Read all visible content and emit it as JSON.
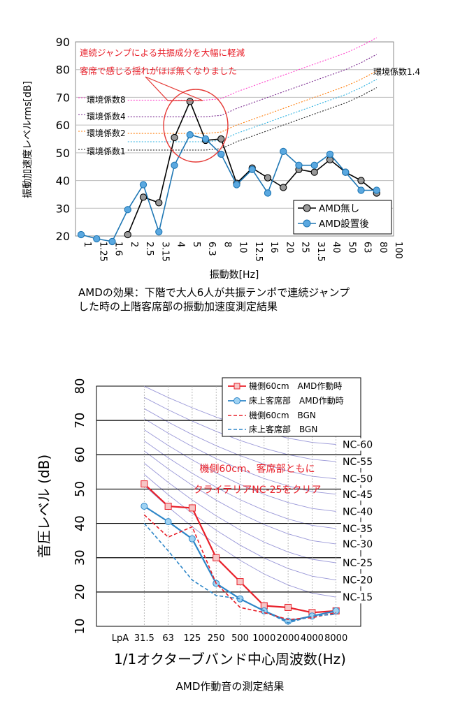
{
  "chart_data": [
    {
      "type": "line",
      "title": "",
      "caption": [
        "AMDの効果：下階で大人6人が共振テンポで連続ジャンプ",
        "した時の上階客席部の振動加速度測定結果"
      ],
      "xlabel": "振動数[Hz]",
      "ylabel": "振動加速度レベルrms[dB]",
      "ylim": [
        20,
        90
      ],
      "yticks": [
        "20",
        "30",
        "40",
        "50",
        "60",
        "70",
        "80",
        "90"
      ],
      "categories": [
        "1",
        "1.25",
        "1.6",
        "2",
        "2.5",
        "3.15",
        "4",
        "5",
        "6.3",
        "8",
        "10",
        "12.5",
        "16",
        "20",
        "25",
        "31.5",
        "40",
        "50",
        "63",
        "80",
        "100"
      ],
      "grid": true,
      "legend_position": "bottom-right",
      "series": [
        {
          "name": "AMD無し",
          "color": "#000000",
          "marker_fill": "#999999",
          "values": [
            null,
            null,
            null,
            20.5,
            34,
            32,
            55.5,
            68.5,
            54.5,
            55,
            39,
            44.5,
            41,
            37.5,
            44,
            43,
            47.5,
            43,
            40,
            35.5,
            null
          ]
        },
        {
          "name": "AMD設置後",
          "color": "#1f77b4",
          "marker_fill": "#5aa8e0",
          "values": [
            20.5,
            19,
            18,
            29.5,
            38.5,
            21.5,
            45.5,
            56.5,
            55,
            49.5,
            38.5,
            44,
            35.5,
            50.5,
            45.5,
            45.5,
            49.5,
            43,
            36.5,
            36.5,
            null
          ]
        }
      ],
      "reference_curves": [
        {
          "label": "環境係数1",
          "color": "#222222",
          "values": [
            null,
            null,
            null,
            51,
            51,
            51,
            51,
            51,
            51,
            51.5,
            54,
            56,
            58,
            60,
            62,
            64,
            66,
            68,
            70.5,
            73.5,
            null
          ]
        },
        {
          "label": "環境係数1.4",
          "color": "#2ab0e0",
          "values": [
            null,
            null,
            null,
            54,
            54,
            54,
            54,
            54,
            54,
            54.5,
            57,
            59,
            61,
            63,
            65,
            67,
            69,
            71,
            73.5,
            76.5,
            null
          ]
        },
        {
          "label": "環境係数2",
          "color": "#ff7f0e",
          "values": [
            null,
            null,
            null,
            57,
            57,
            57,
            57,
            57,
            57,
            57.5,
            60,
            62,
            64,
            66,
            68,
            70,
            72,
            74,
            76.5,
            79.5,
            null
          ]
        },
        {
          "label": "環境係数4",
          "color": "#7a2a90",
          "values": [
            null,
            null,
            null,
            63,
            63,
            63,
            63,
            63,
            63,
            63.5,
            66,
            68,
            70,
            72,
            74,
            76,
            78,
            80,
            82.5,
            85.5,
            null
          ]
        },
        {
          "label": "環境係数8",
          "color": "#ff44cc",
          "values": [
            null,
            null,
            null,
            69,
            69,
            69,
            69,
            69,
            69,
            69.5,
            72,
            74,
            76,
            78,
            80,
            82,
            84,
            86,
            88.5,
            91.5,
            null
          ]
        }
      ],
      "annotations": [
        "連続ジャンプによる共振成分を大幅に軽減",
        "客席で感じる揺れがほぼ無くなりました"
      ]
    },
    {
      "type": "line",
      "title": "",
      "caption": "AMD作動音の測定結果",
      "xlabel": "1/1オクターブバンド中心周波数(Hz)",
      "ylabel": "音圧レベル (dB)",
      "ylim": [
        10,
        80
      ],
      "yticks": [
        "10",
        "20",
        "30",
        "40",
        "50",
        "60",
        "70",
        "80"
      ],
      "categories": [
        "LpA",
        "31.5",
        "63",
        "125",
        "250",
        "500",
        "1000",
        "2000",
        "4000",
        "8000"
      ],
      "grid": true,
      "legend_position": "top-right",
      "series": [
        {
          "name": "機側60cm　AMD作動時",
          "color": "#e8202a",
          "dash": false,
          "marker": "square",
          "values": [
            null,
            51.5,
            45,
            44.5,
            30,
            23,
            16,
            15.5,
            14,
            14.5
          ]
        },
        {
          "name": "床上客席部　AMD作動時",
          "color": "#2d86c8",
          "dash": false,
          "marker": "circle",
          "values": [
            null,
            45,
            40.5,
            35.5,
            22.5,
            18,
            14.5,
            11.5,
            13,
            14.5
          ]
        },
        {
          "name": "機側60cm　BGN",
          "color": "#e8202a",
          "dash": true,
          "marker": "none",
          "values": [
            null,
            42.5,
            36,
            39,
            22.5,
            15.5,
            14,
            12,
            12.5,
            14
          ]
        },
        {
          "name": "床上客席部　BGN",
          "color": "#2d86c8",
          "dash": true,
          "marker": "none",
          "values": [
            null,
            40,
            32,
            23.5,
            19,
            18,
            14.5,
            11,
            13,
            13.5
          ]
        }
      ],
      "nc_curves": [
        "NC-60",
        "NC-55",
        "NC-50",
        "NC-45",
        "NC-40",
        "NC-35",
        "NC-30",
        "NC-25",
        "NC-20",
        "NC-15"
      ],
      "nc_label_values": [
        63,
        58,
        53,
        48.5,
        43.5,
        38.5,
        34,
        28.5,
        23.5,
        18.5
      ],
      "annotations": [
        "機側60cm、客席部ともに",
        "クライテリアNC-25をクリア"
      ]
    }
  ]
}
